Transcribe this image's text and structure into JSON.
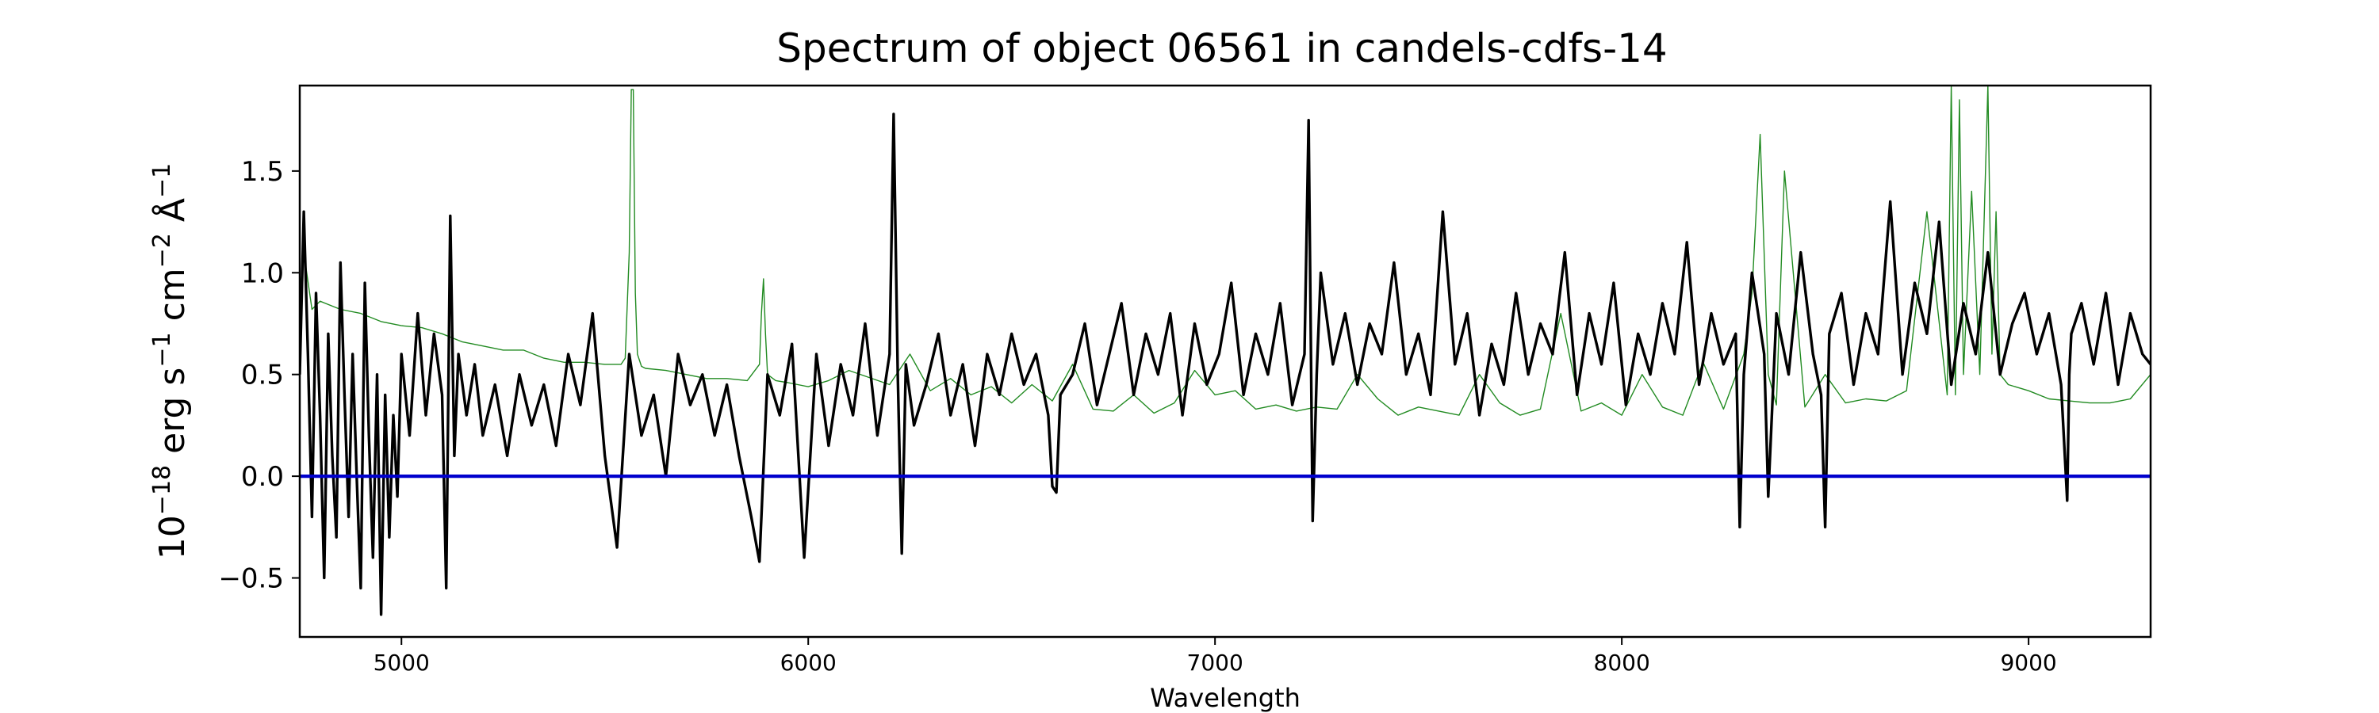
{
  "chart_data": {
    "type": "line",
    "title": "Spectrum of object 06561 in candels-cdfs-14",
    "xlabel": "Wavelength",
    "ylabel": {
      "prefix": "10",
      "exponent": "−18",
      "text": " erg s",
      "e1": "−1",
      "t2": " cm",
      "e2": "−2",
      "t3": " Å",
      "e3": "−1"
    },
    "xlim": [
      4750,
      9300
    ],
    "ylim": [
      -0.79,
      1.92
    ],
    "xticks": [
      5000,
      6000,
      7000,
      8000,
      9000
    ],
    "xtick_labels": [
      "5000",
      "6000",
      "7000",
      "8000",
      "9000"
    ],
    "yticks": [
      -0.5,
      0.0,
      0.5,
      1.0,
      1.5
    ],
    "ytick_labels": [
      "−0.5",
      "0.0",
      "0.5",
      "1.0",
      "1.5"
    ],
    "grid": false,
    "series": [
      {
        "role": "error",
        "color": "#228b22",
        "x": [
          4750,
          4760,
          4780,
          4800,
          4850,
          4900,
          4950,
          5000,
          5050,
          5100,
          5150,
          5200,
          5250,
          5300,
          5350,
          5400,
          5450,
          5500,
          5540,
          5550,
          5560,
          5565,
          5570,
          5575,
          5580,
          5590,
          5600,
          5650,
          5700,
          5750,
          5800,
          5850,
          5880,
          5885,
          5890,
          5895,
          5900,
          5920,
          5950,
          6000,
          6050,
          6100,
          6200,
          6250,
          6300,
          6350,
          6400,
          6450,
          6500,
          6550,
          6600,
          6650,
          6700,
          6750,
          6800,
          6850,
          6900,
          6950,
          7000,
          7050,
          7100,
          7150,
          7200,
          7250,
          7300,
          7350,
          7400,
          7450,
          7500,
          7550,
          7600,
          7650,
          7700,
          7750,
          7800,
          7850,
          7900,
          7950,
          8000,
          8050,
          8100,
          8150,
          8200,
          8250,
          8300,
          8320,
          8340,
          8360,
          8380,
          8400,
          8450,
          8500,
          8550,
          8600,
          8650,
          8700,
          8750,
          8800,
          8810,
          8820,
          8830,
          8840,
          8860,
          8880,
          8900,
          8910,
          8920,
          8930,
          8950,
          9000,
          9050,
          9100,
          9150,
          9200,
          9250,
          9300
        ],
        "y": [
          0.9,
          1.1,
          0.82,
          0.86,
          0.82,
          0.8,
          0.76,
          0.74,
          0.73,
          0.7,
          0.66,
          0.64,
          0.62,
          0.62,
          0.58,
          0.56,
          0.56,
          0.55,
          0.55,
          0.58,
          1.1,
          1.9,
          1.9,
          0.9,
          0.6,
          0.54,
          0.53,
          0.52,
          0.5,
          0.48,
          0.48,
          0.47,
          0.55,
          0.8,
          0.97,
          0.7,
          0.5,
          0.47,
          0.46,
          0.44,
          0.47,
          0.52,
          0.45,
          0.6,
          0.42,
          0.48,
          0.4,
          0.44,
          0.36,
          0.45,
          0.37,
          0.55,
          0.33,
          0.32,
          0.4,
          0.31,
          0.36,
          0.52,
          0.4,
          0.42,
          0.33,
          0.35,
          0.32,
          0.34,
          0.33,
          0.5,
          0.38,
          0.3,
          0.34,
          0.32,
          0.3,
          0.5,
          0.36,
          0.3,
          0.33,
          0.8,
          0.32,
          0.36,
          0.3,
          0.5,
          0.34,
          0.3,
          0.56,
          0.33,
          0.6,
          0.9,
          1.68,
          0.5,
          0.35,
          1.5,
          0.34,
          0.5,
          0.36,
          0.38,
          0.37,
          0.42,
          1.3,
          0.4,
          1.92,
          0.4,
          1.85,
          0.5,
          1.4,
          0.5,
          1.92,
          0.6,
          1.3,
          0.5,
          0.45,
          0.42,
          0.38,
          0.37,
          0.36,
          0.36,
          0.38,
          0.5
        ]
      },
      {
        "role": "flux",
        "color": "#000000",
        "x": [
          4750,
          4760,
          4770,
          4780,
          4790,
          4800,
          4810,
          4820,
          4830,
          4840,
          4850,
          4860,
          4870,
          4880,
          4890,
          4900,
          4910,
          4920,
          4930,
          4940,
          4950,
          4960,
          4970,
          4980,
          4990,
          5000,
          5020,
          5040,
          5060,
          5080,
          5100,
          5110,
          5120,
          5130,
          5140,
          5160,
          5180,
          5200,
          5230,
          5260,
          5290,
          5320,
          5350,
          5380,
          5410,
          5440,
          5470,
          5500,
          5530,
          5560,
          5590,
          5620,
          5650,
          5680,
          5710,
          5740,
          5770,
          5800,
          5830,
          5860,
          5880,
          5900,
          5930,
          5960,
          5990,
          6020,
          6050,
          6080,
          6110,
          6140,
          6170,
          6200,
          6210,
          6220,
          6230,
          6240,
          6260,
          6290,
          6320,
          6350,
          6380,
          6410,
          6440,
          6470,
          6500,
          6530,
          6560,
          6590,
          6600,
          6610,
          6620,
          6650,
          6680,
          6710,
          6740,
          6770,
          6800,
          6830,
          6860,
          6890,
          6920,
          6950,
          6980,
          7010,
          7040,
          7070,
          7100,
          7130,
          7160,
          7190,
          7220,
          7230,
          7240,
          7250,
          7260,
          7290,
          7320,
          7350,
          7380,
          7410,
          7440,
          7470,
          7500,
          7530,
          7560,
          7590,
          7620,
          7650,
          7680,
          7710,
          7740,
          7770,
          7800,
          7830,
          7860,
          7890,
          7920,
          7950,
          7980,
          8010,
          8040,
          8070,
          8100,
          8130,
          8160,
          8190,
          8220,
          8250,
          8280,
          8290,
          8300,
          8320,
          8350,
          8360,
          8380,
          8410,
          8440,
          8470,
          8490,
          8500,
          8510,
          8540,
          8570,
          8600,
          8630,
          8660,
          8690,
          8720,
          8750,
          8780,
          8810,
          8840,
          8870,
          8900,
          8930,
          8960,
          8990,
          9020,
          9050,
          9080,
          9095,
          9100,
          9105,
          9130,
          9160,
          9190,
          9220,
          9250,
          9280,
          9300
        ],
        "y": [
          0.5,
          1.3,
          0.6,
          -0.2,
          0.9,
          0.3,
          -0.5,
          0.7,
          0.1,
          -0.3,
          1.05,
          0.4,
          -0.2,
          0.6,
          0.0,
          -0.55,
          0.95,
          0.2,
          -0.4,
          0.5,
          -0.68,
          0.4,
          -0.3,
          0.3,
          -0.1,
          0.6,
          0.2,
          0.8,
          0.3,
          0.7,
          0.4,
          -0.55,
          1.28,
          0.1,
          0.6,
          0.3,
          0.55,
          0.2,
          0.45,
          0.1,
          0.5,
          0.25,
          0.45,
          0.15,
          0.6,
          0.35,
          0.8,
          0.1,
          -0.35,
          0.6,
          0.2,
          0.4,
          0.0,
          0.6,
          0.35,
          0.5,
          0.2,
          0.45,
          0.1,
          -0.2,
          -0.42,
          0.5,
          0.3,
          0.65,
          -0.4,
          0.6,
          0.15,
          0.55,
          0.3,
          0.75,
          0.2,
          0.6,
          1.78,
          0.5,
          -0.38,
          0.55,
          0.25,
          0.45,
          0.7,
          0.3,
          0.55,
          0.15,
          0.6,
          0.4,
          0.7,
          0.45,
          0.6,
          0.3,
          -0.05,
          -0.08,
          0.4,
          0.5,
          0.75,
          0.35,
          0.6,
          0.85,
          0.4,
          0.7,
          0.5,
          0.8,
          0.3,
          0.75,
          0.45,
          0.6,
          0.95,
          0.4,
          0.7,
          0.5,
          0.85,
          0.35,
          0.6,
          1.75,
          -0.22,
          0.5,
          1.0,
          0.55,
          0.8,
          0.45,
          0.75,
          0.6,
          1.05,
          0.5,
          0.7,
          0.4,
          1.3,
          0.55,
          0.8,
          0.3,
          0.65,
          0.45,
          0.9,
          0.5,
          0.75,
          0.6,
          1.1,
          0.4,
          0.8,
          0.55,
          0.95,
          0.35,
          0.7,
          0.5,
          0.85,
          0.6,
          1.15,
          0.45,
          0.8,
          0.55,
          0.7,
          -0.25,
          0.5,
          1.0,
          0.6,
          -0.1,
          0.8,
          0.5,
          1.1,
          0.6,
          0.4,
          -0.25,
          0.7,
          0.9,
          0.45,
          0.8,
          0.6,
          1.35,
          0.5,
          0.95,
          0.7,
          1.25,
          0.45,
          0.85,
          0.6,
          1.1,
          0.5,
          0.75,
          0.9,
          0.6,
          0.8,
          0.45,
          -0.12,
          0.5,
          0.7,
          0.85,
          0.55,
          0.9,
          0.45,
          0.8,
          0.6,
          0.55
        ]
      },
      {
        "role": "zero",
        "color": "#0000cd",
        "x": [
          4750,
          9300
        ],
        "y": [
          0.0,
          0.0
        ]
      }
    ]
  }
}
